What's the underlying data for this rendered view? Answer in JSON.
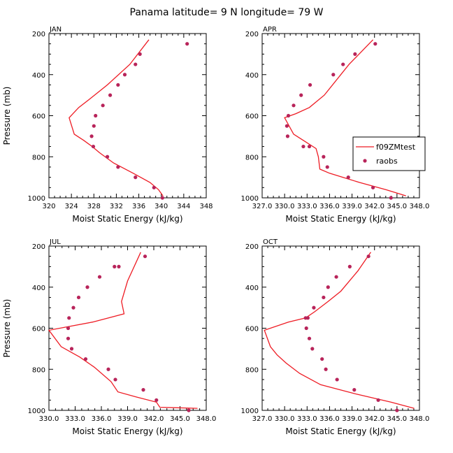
{
  "figure": {
    "title": "Panama  latitude= 9 N longitude= 79 W"
  },
  "colors": {
    "model_line": "#ee1c24",
    "obs_dot": "#b8245a",
    "axis": "#000000"
  },
  "chart_data": [
    {
      "type": "line",
      "panel_label": "JAN",
      "xlabel": "Moist Static Energy (kJ/kg)",
      "ylabel": "Pressure (mb)",
      "xlim": [
        320,
        348
      ],
      "ylim": [
        1000,
        200
      ],
      "x_ticks": [
        320,
        324,
        328,
        332,
        336,
        340,
        344,
        348
      ],
      "x_tick_labels": [
        "320",
        "324",
        "328",
        "332",
        "336",
        "340",
        "344",
        "348"
      ],
      "y_ticks": [
        200,
        400,
        600,
        800,
        1000
      ],
      "y_tick_labels": [
        "200",
        "400",
        "600",
        "800",
        "1000"
      ],
      "series": [
        {
          "name": "f09ZMtest",
          "style": "line",
          "x": [
            340.3,
            339.5,
            338.0,
            335.0,
            331.5,
            329.0,
            327.7,
            326.2,
            324.5,
            323.6,
            325.3,
            327.2,
            330.4,
            334.4,
            337.8
          ],
          "y": [
            990,
            960,
            925,
            880,
            830,
            780,
            750,
            720,
            690,
            610,
            560,
            520,
            450,
            350,
            230
          ]
        },
        {
          "name": "raobs",
          "style": "dots",
          "x": [
            340.2,
            338.7,
            335.4,
            332.3,
            330.4,
            327.9,
            327.6,
            328.0,
            328.3,
            329.6,
            330.9,
            332.3,
            333.5,
            335.4,
            336.2,
            344.6
          ],
          "y": [
            1000,
            950,
            900,
            850,
            800,
            750,
            700,
            650,
            600,
            550,
            500,
            450,
            400,
            350,
            300,
            250
          ]
        }
      ]
    },
    {
      "type": "line",
      "panel_label": "APR",
      "xlabel": "Moist Static Energy (kJ/kg)",
      "ylabel": "",
      "xlim": [
        327,
        348
      ],
      "ylim": [
        1000,
        200
      ],
      "x_ticks": [
        327,
        330,
        333,
        336,
        339,
        342,
        345,
        348
      ],
      "x_tick_labels": [
        "327.0",
        "330.0",
        "333.0",
        "336.0",
        "339.0",
        "342.0",
        "345.0",
        "348.0"
      ],
      "y_ticks": [
        200,
        400,
        600,
        800,
        1000
      ],
      "y_tick_labels": [
        "200",
        "400",
        "600",
        "800",
        "1000"
      ],
      "legend": {
        "position": "right",
        "entries": [
          "f09ZMtest",
          "raobs"
        ]
      },
      "series": [
        {
          "name": "f09ZMtest",
          "style": "line",
          "x": [
            346.2,
            343.5,
            340.0,
            336.0,
            334.7,
            334.5,
            334.2,
            332.5,
            331.2,
            330.0,
            331.5,
            333.3,
            335.3,
            338.6,
            341.8
          ],
          "y": [
            990,
            960,
            925,
            880,
            860,
            800,
            760,
            720,
            690,
            610,
            590,
            560,
            500,
            350,
            230
          ]
        },
        {
          "name": "raobs",
          "style": "dots",
          "x": [
            344.2,
            341.8,
            338.5,
            335.7,
            335.2,
            333.3,
            332.5,
            330.4,
            330.3,
            330.5,
            331.2,
            332.2,
            333.4,
            336.5,
            337.8,
            339.4,
            342.1
          ],
          "y": [
            1000,
            950,
            900,
            850,
            800,
            750,
            750,
            700,
            650,
            600,
            550,
            500,
            450,
            400,
            350,
            300,
            250
          ]
        }
      ]
    },
    {
      "type": "line",
      "panel_label": "JUL",
      "xlabel": "Moist Static Energy (kJ/kg)",
      "ylabel": "Pressure (mb)",
      "xlim": [
        330,
        348
      ],
      "ylim": [
        1000,
        200
      ],
      "x_ticks": [
        330,
        333,
        336,
        339,
        342,
        345,
        348
      ],
      "x_tick_labels": [
        "330.0",
        "333.0",
        "336.0",
        "339.0",
        "342.0",
        "345.0",
        "348.0"
      ],
      "y_ticks": [
        200,
        400,
        600,
        800,
        1000
      ],
      "y_tick_labels": [
        "200",
        "400",
        "600",
        "800",
        "1000"
      ],
      "series": [
        {
          "name": "f09ZMtest",
          "style": "line",
          "x": [
            347.0,
            342.7,
            342.3,
            340.0,
            337.9,
            337.1,
            335.2,
            333.5,
            331.4,
            330.0,
            335.0,
            338.6,
            338.3,
            339.0,
            340.5
          ],
          "y": [
            990,
            985,
            960,
            935,
            910,
            860,
            790,
            740,
            690,
            610,
            570,
            530,
            470,
            370,
            230
          ]
        },
        {
          "name": "raobs",
          "style": "dots",
          "x": [
            346.0,
            342.3,
            340.8,
            337.6,
            336.8,
            334.2,
            332.6,
            332.2,
            332.2,
            332.3,
            332.8,
            333.4,
            334.4,
            335.8,
            337.5,
            338.0,
            341.0
          ],
          "y": [
            1000,
            950,
            900,
            850,
            800,
            750,
            700,
            650,
            600,
            550,
            500,
            450,
            400,
            350,
            300,
            300,
            250
          ]
        }
      ]
    },
    {
      "type": "line",
      "panel_label": "OCT",
      "xlabel": "Moist Static Energy (kJ/kg)",
      "ylabel": "",
      "xlim": [
        327,
        348
      ],
      "ylim": [
        1000,
        200
      ],
      "x_ticks": [
        327,
        330,
        333,
        336,
        339,
        342,
        345,
        348
      ],
      "x_tick_labels": [
        "327.0",
        "330.0",
        "333.0",
        "336.0",
        "339.0",
        "342.0",
        "345.0",
        "348.0"
      ],
      "y_ticks": [
        200,
        400,
        600,
        800,
        1000
      ],
      "y_tick_labels": [
        "200",
        "400",
        "600",
        "800",
        "1000"
      ],
      "series": [
        {
          "name": "f09ZMtest",
          "style": "line",
          "x": [
            347.3,
            344.2,
            339.5,
            334.8,
            332.0,
            330.2,
            329.0,
            328.1,
            327.3,
            330.5,
            332.8,
            334.0,
            335.8,
            337.5,
            339.8,
            341.5
          ],
          "y": [
            990,
            960,
            920,
            875,
            820,
            770,
            730,
            690,
            610,
            570,
            550,
            520,
            470,
            420,
            320,
            230
          ]
        },
        {
          "name": "raobs",
          "style": "dots",
          "x": [
            345.0,
            342.5,
            339.3,
            337.0,
            335.5,
            335.0,
            333.7,
            333.3,
            332.9,
            332.8,
            333.1,
            333.9,
            335.2,
            335.8,
            336.9,
            338.7,
            341.2
          ],
          "y": [
            1000,
            950,
            900,
            850,
            800,
            750,
            700,
            650,
            600,
            550,
            550,
            500,
            450,
            400,
            350,
            300,
            250
          ]
        }
      ]
    }
  ]
}
